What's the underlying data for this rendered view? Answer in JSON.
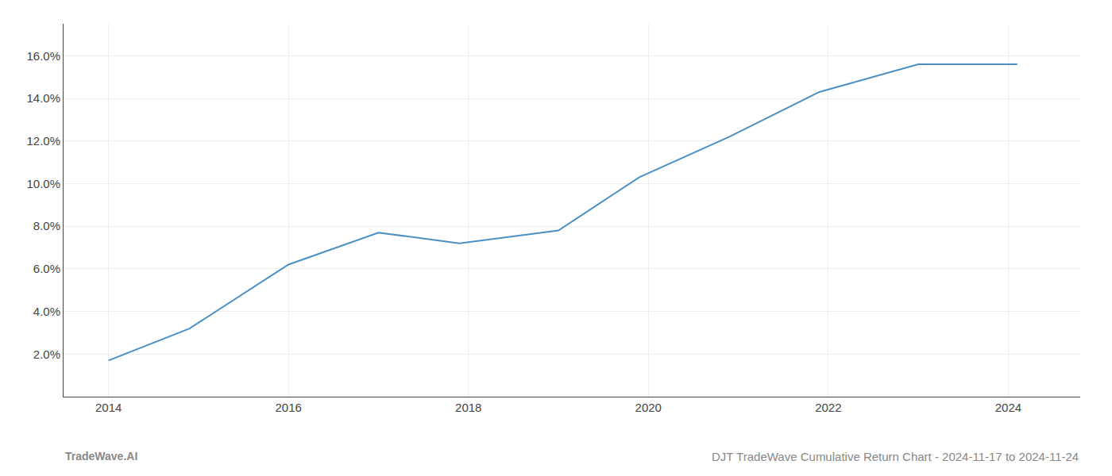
{
  "chart_data": {
    "type": "line",
    "title": "DJT TradeWave Cumulative Return Chart - 2024-11-17 to 2024-11-24",
    "annotations": [
      "TradeWave.AI"
    ],
    "x": [
      2014.0,
      2014.9,
      2016.0,
      2017.0,
      2017.9,
      2019.0,
      2019.9,
      2020.9,
      2021.9,
      2023.0,
      2023.8,
      2024.1
    ],
    "values": [
      0.017,
      0.032,
      0.062,
      0.077,
      0.072,
      0.078,
      0.103,
      0.122,
      0.143,
      0.156,
      0.156,
      0.156
    ],
    "color": "#4a90c4",
    "xlim": [
      2013.5,
      2024.8
    ],
    "ylim": [
      0.0,
      0.175
    ],
    "xticks": [
      2014,
      2016,
      2018,
      2020,
      2022,
      2024
    ],
    "yticks": [
      {
        "value": 0.02,
        "label": "2.0%"
      },
      {
        "value": 0.04,
        "label": "4.0%"
      },
      {
        "value": 0.06,
        "label": "6.0%"
      },
      {
        "value": 0.08,
        "label": "8.0%"
      },
      {
        "value": 0.1,
        "label": "10.0%"
      },
      {
        "value": 0.12,
        "label": "12.0%"
      },
      {
        "value": 0.14,
        "label": "14.0%"
      },
      {
        "value": 0.16,
        "label": "16.0%"
      }
    ],
    "grid": true
  }
}
